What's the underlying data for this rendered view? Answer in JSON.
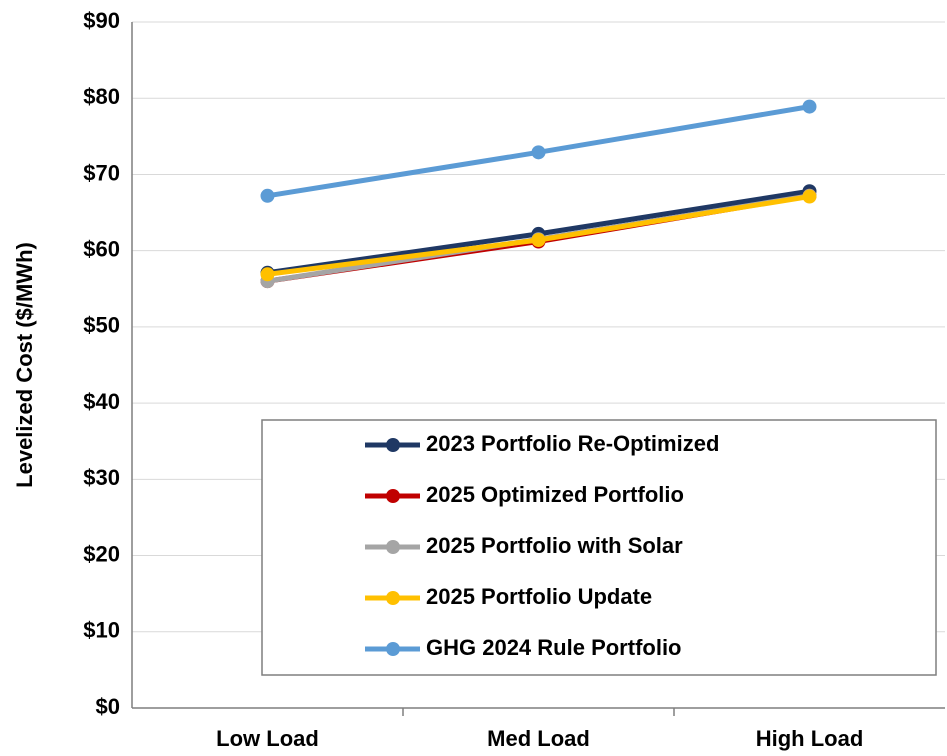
{
  "chart_data": {
    "type": "line",
    "ylabel": "Levelized Cost ($/MWh)",
    "categories": [
      "Low Load",
      "Med Load",
      "High Load"
    ],
    "series": [
      {
        "name": "2023 Portfolio Re-Optimized",
        "color": "#1f3864",
        "values": [
          57.1,
          62.2,
          67.8
        ]
      },
      {
        "name": "2025 Optimized Portfolio",
        "color": "#c00000",
        "values": [
          56.0,
          61.2,
          67.2
        ]
      },
      {
        "name": "2025 Portfolio with Solar",
        "color": "#a5a5a5",
        "values": [
          56.0,
          61.5,
          67.2
        ]
      },
      {
        "name": "2025 Portfolio Update",
        "color": "#ffc000",
        "values": [
          56.9,
          61.4,
          67.1
        ]
      },
      {
        "name": "GHG 2024 Rule Portfolio",
        "color": "#5b9bd5",
        "values": [
          67.2,
          72.9,
          78.9
        ]
      }
    ],
    "ylim": [
      0,
      90
    ],
    "yticks": [
      {
        "value": 0,
        "label": "$0"
      },
      {
        "value": 10,
        "label": "$10"
      },
      {
        "value": 20,
        "label": "$20"
      },
      {
        "value": 30,
        "label": "$30"
      },
      {
        "value": 40,
        "label": "$40"
      },
      {
        "value": 50,
        "label": "$50"
      },
      {
        "value": 60,
        "label": "$60"
      },
      {
        "value": 70,
        "label": "$70"
      },
      {
        "value": 80,
        "label": "$80"
      },
      {
        "value": 90,
        "label": "$90"
      }
    ],
    "grid": true
  }
}
